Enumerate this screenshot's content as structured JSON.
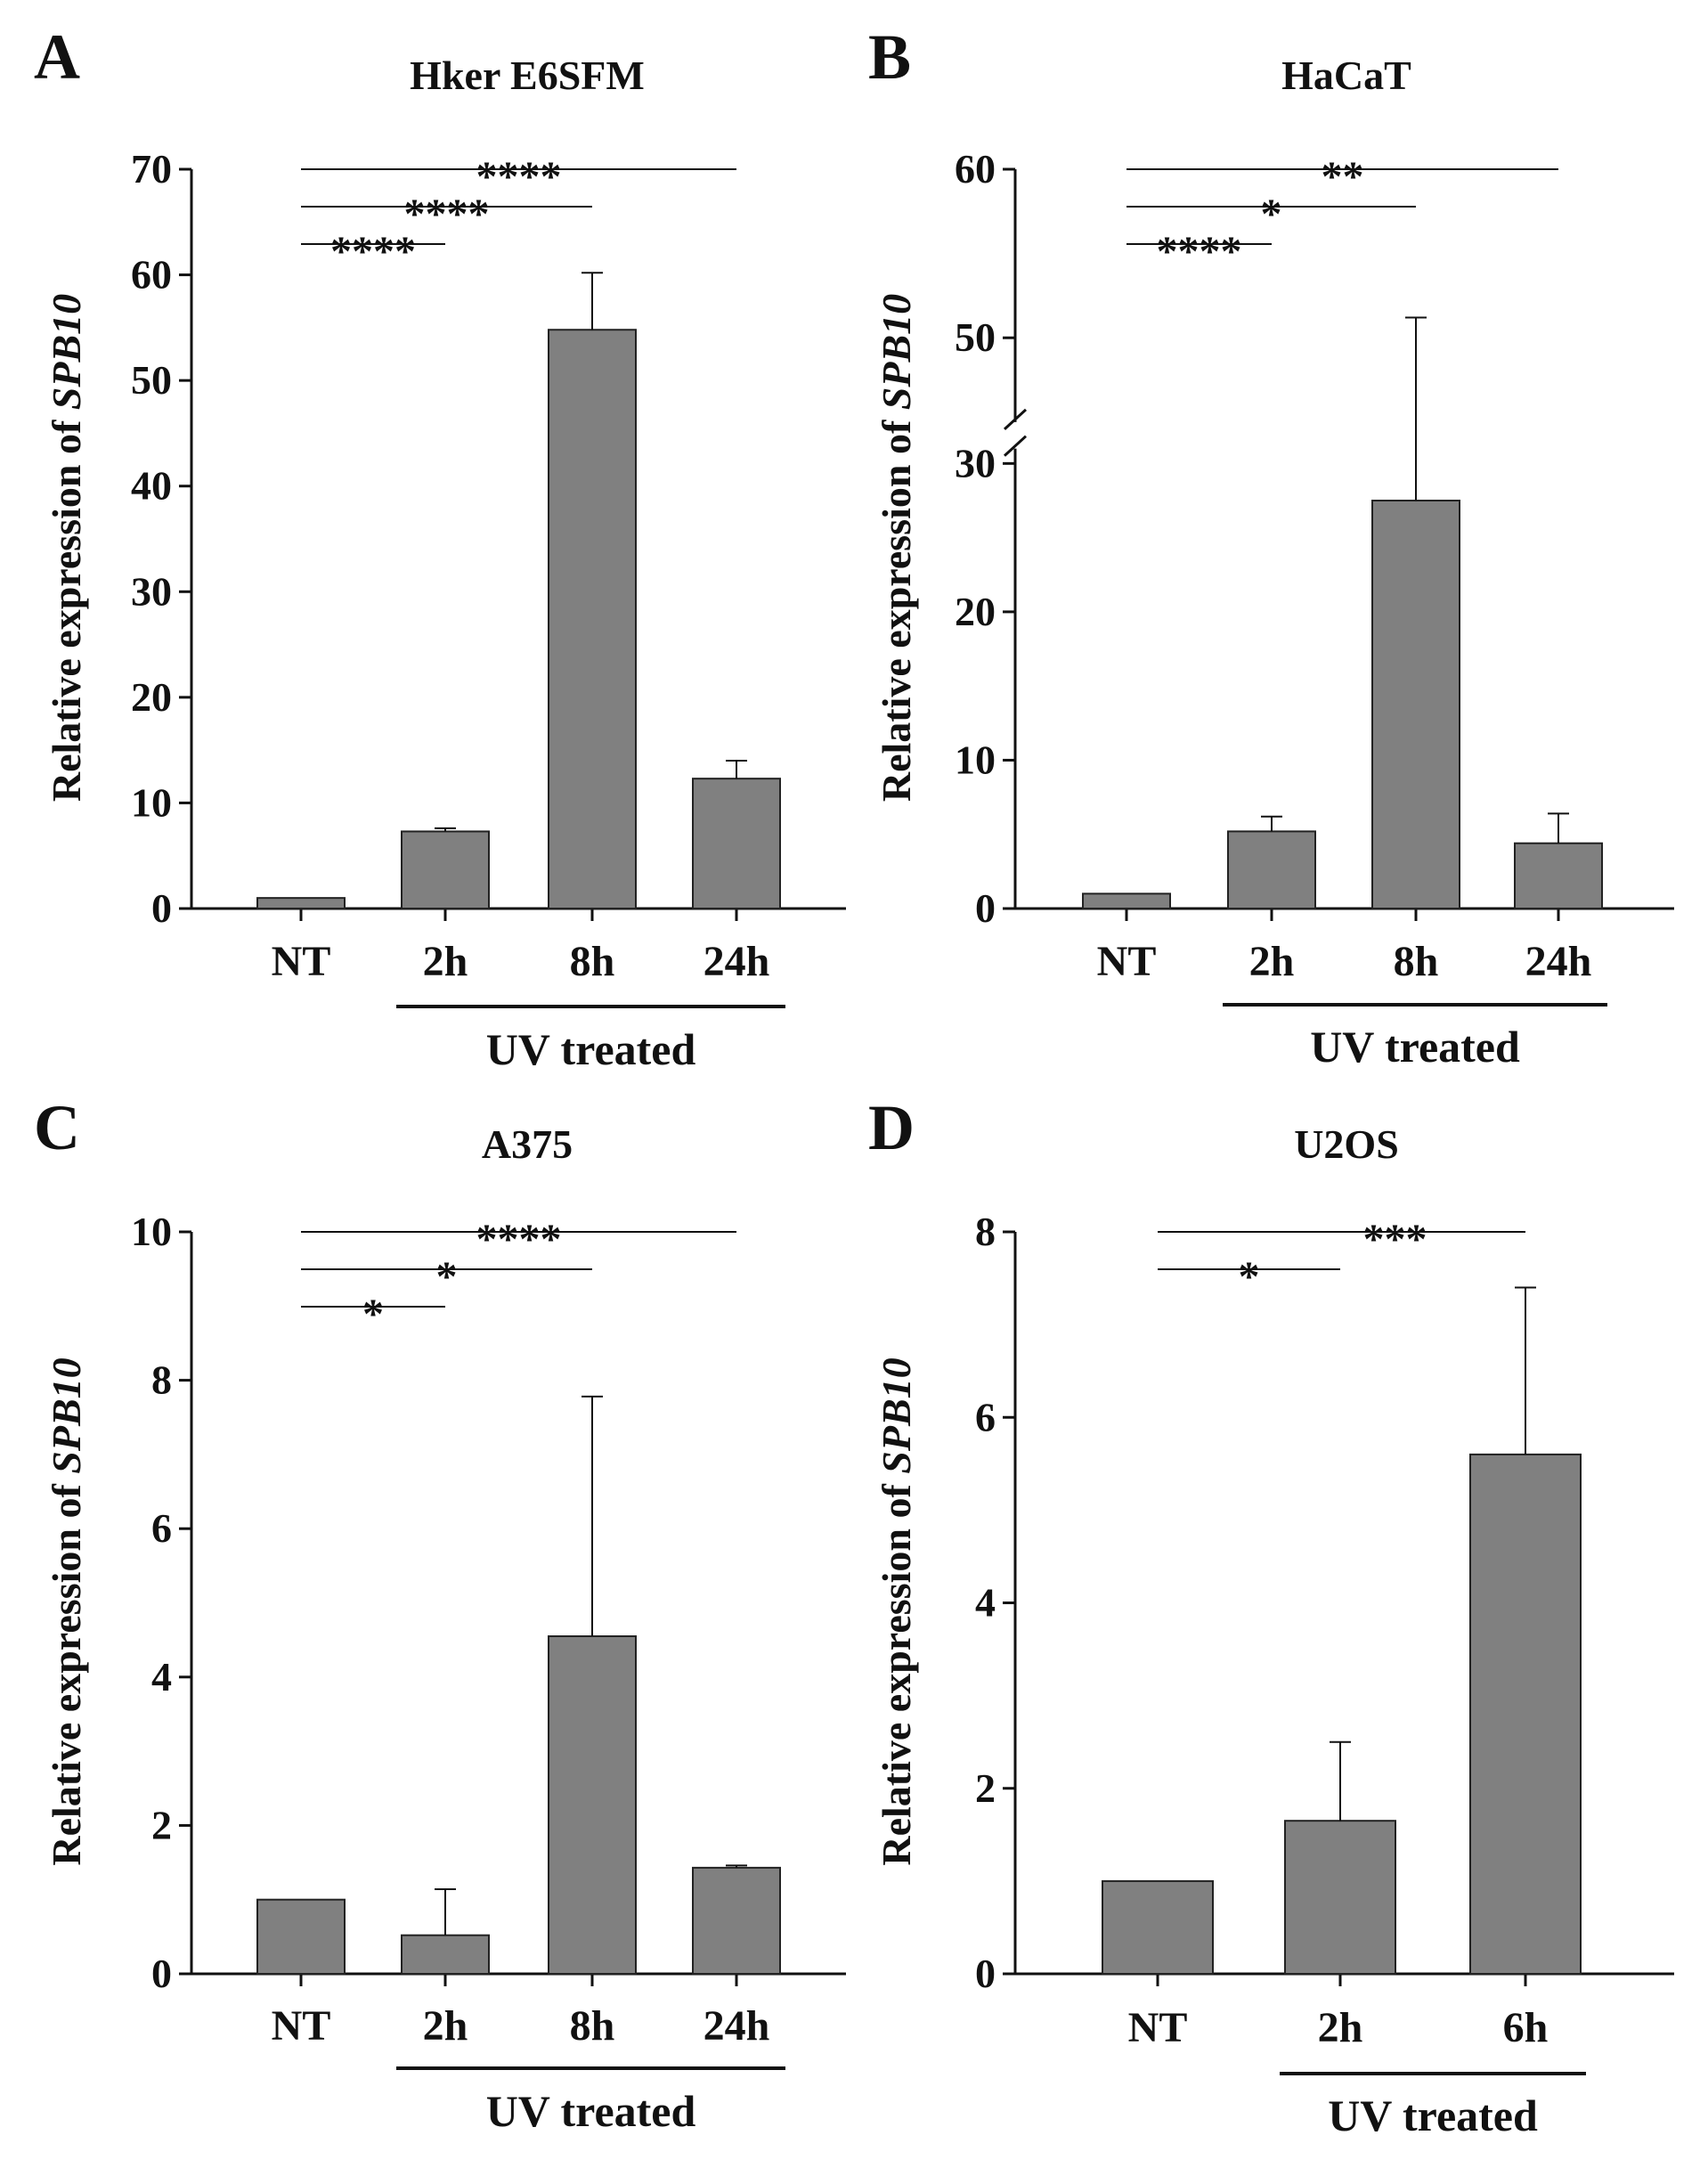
{
  "chart_data": [
    {
      "panel": "A",
      "title": "Hker E6SFM",
      "type": "bar",
      "categories": [
        "NT",
        "2h",
        "8h",
        "24h"
      ],
      "values": [
        1,
        7.3,
        54.8,
        12.3
      ],
      "errors": [
        0,
        0.3,
        5.4,
        1.7
      ],
      "ylabel_prefix": "Relative expression of ",
      "ylabel_gene": "SPB10",
      "ylim": [
        0,
        70
      ],
      "yticks": [
        0,
        10,
        20,
        30,
        40,
        50,
        60,
        70
      ],
      "group_label": "UV treated",
      "group_categories": [
        "2h",
        "8h",
        "24h"
      ],
      "significance": [
        {
          "from": "NT",
          "to": "24h",
          "label": "****"
        },
        {
          "from": "NT",
          "to": "8h",
          "label": "****"
        },
        {
          "from": "NT",
          "to": "2h",
          "label": "****"
        }
      ]
    },
    {
      "panel": "B",
      "title": "HaCaT",
      "type": "bar",
      "categories": [
        "NT",
        "2h",
        "8h",
        "24h"
      ],
      "values": [
        1,
        5.2,
        27.5,
        4.4
      ],
      "errors": [
        0,
        1.0,
        23.7,
        2.0
      ],
      "ylabel_prefix": "Relative expression of ",
      "ylabel_gene": "SPB10",
      "axis_break": [
        31,
        45
      ],
      "ylim": [
        0,
        60
      ],
      "yticks": [
        0,
        10,
        20,
        30,
        50,
        60
      ],
      "group_label": "UV treated",
      "group_categories": [
        "2h",
        "8h",
        "24h"
      ],
      "significance": [
        {
          "from": "NT",
          "to": "24h",
          "label": "**"
        },
        {
          "from": "NT",
          "to": "8h",
          "label": "*"
        },
        {
          "from": "NT",
          "to": "2h",
          "label": "****"
        }
      ]
    },
    {
      "panel": "C",
      "title": "A375",
      "type": "bar",
      "categories": [
        "NT",
        "2h",
        "8h",
        "24h"
      ],
      "values": [
        1.0,
        0.52,
        4.55,
        1.43
      ],
      "errors": [
        0,
        0.62,
        3.23,
        0.03
      ],
      "ylabel_prefix": "Relative expression of ",
      "ylabel_gene": "SPB10",
      "ylim": [
        0,
        10
      ],
      "yticks": [
        0,
        2,
        4,
        6,
        8,
        10
      ],
      "group_label": "UV treated",
      "group_categories": [
        "2h",
        "8h",
        "24h"
      ],
      "significance": [
        {
          "from": "NT",
          "to": "24h",
          "label": "****"
        },
        {
          "from": "NT",
          "to": "8h",
          "label": "*"
        },
        {
          "from": "NT",
          "to": "2h",
          "label": "*"
        }
      ]
    },
    {
      "panel": "D",
      "title": "U2OS",
      "type": "bar",
      "categories": [
        "NT",
        "2h",
        "6h"
      ],
      "values": [
        1.0,
        1.65,
        5.6
      ],
      "errors": [
        0,
        0.85,
        1.8
      ],
      "ylabel_prefix": "Relative expression of ",
      "ylabel_gene": "SPB10",
      "ylim": [
        0,
        8
      ],
      "yticks": [
        0,
        2,
        4,
        6,
        8
      ],
      "group_label": "UV treated",
      "group_categories": [
        "2h",
        "6h"
      ],
      "significance": [
        {
          "from": "NT",
          "to": "6h",
          "label": "***"
        },
        {
          "from": "NT",
          "to": "2h",
          "label": "*"
        }
      ]
    }
  ],
  "style": {
    "bar_color": "#808080",
    "bar_stroke": "#222222",
    "axis_color": "#111111"
  }
}
